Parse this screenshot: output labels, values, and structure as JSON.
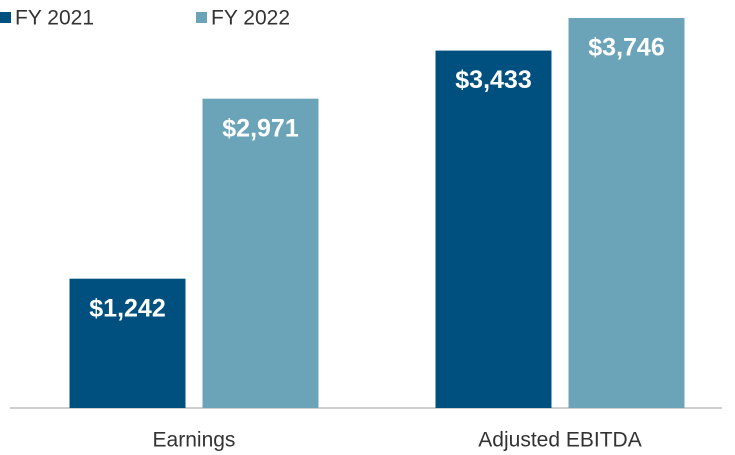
{
  "chart_data": {
    "type": "bar",
    "categories": [
      "Earnings",
      "Adjusted EBITDA"
    ],
    "series": [
      {
        "name": "FY 2021",
        "color": "#00507f",
        "values": [
          1242,
          3433
        ],
        "value_labels": [
          "$1,242",
          "$3,433"
        ]
      },
      {
        "name": "FY 2022",
        "color": "#6ba4b9",
        "values": [
          2971,
          3746
        ],
        "value_labels": [
          "$2,971",
          "$3,746"
        ]
      }
    ],
    "legend": "top-left"
  }
}
